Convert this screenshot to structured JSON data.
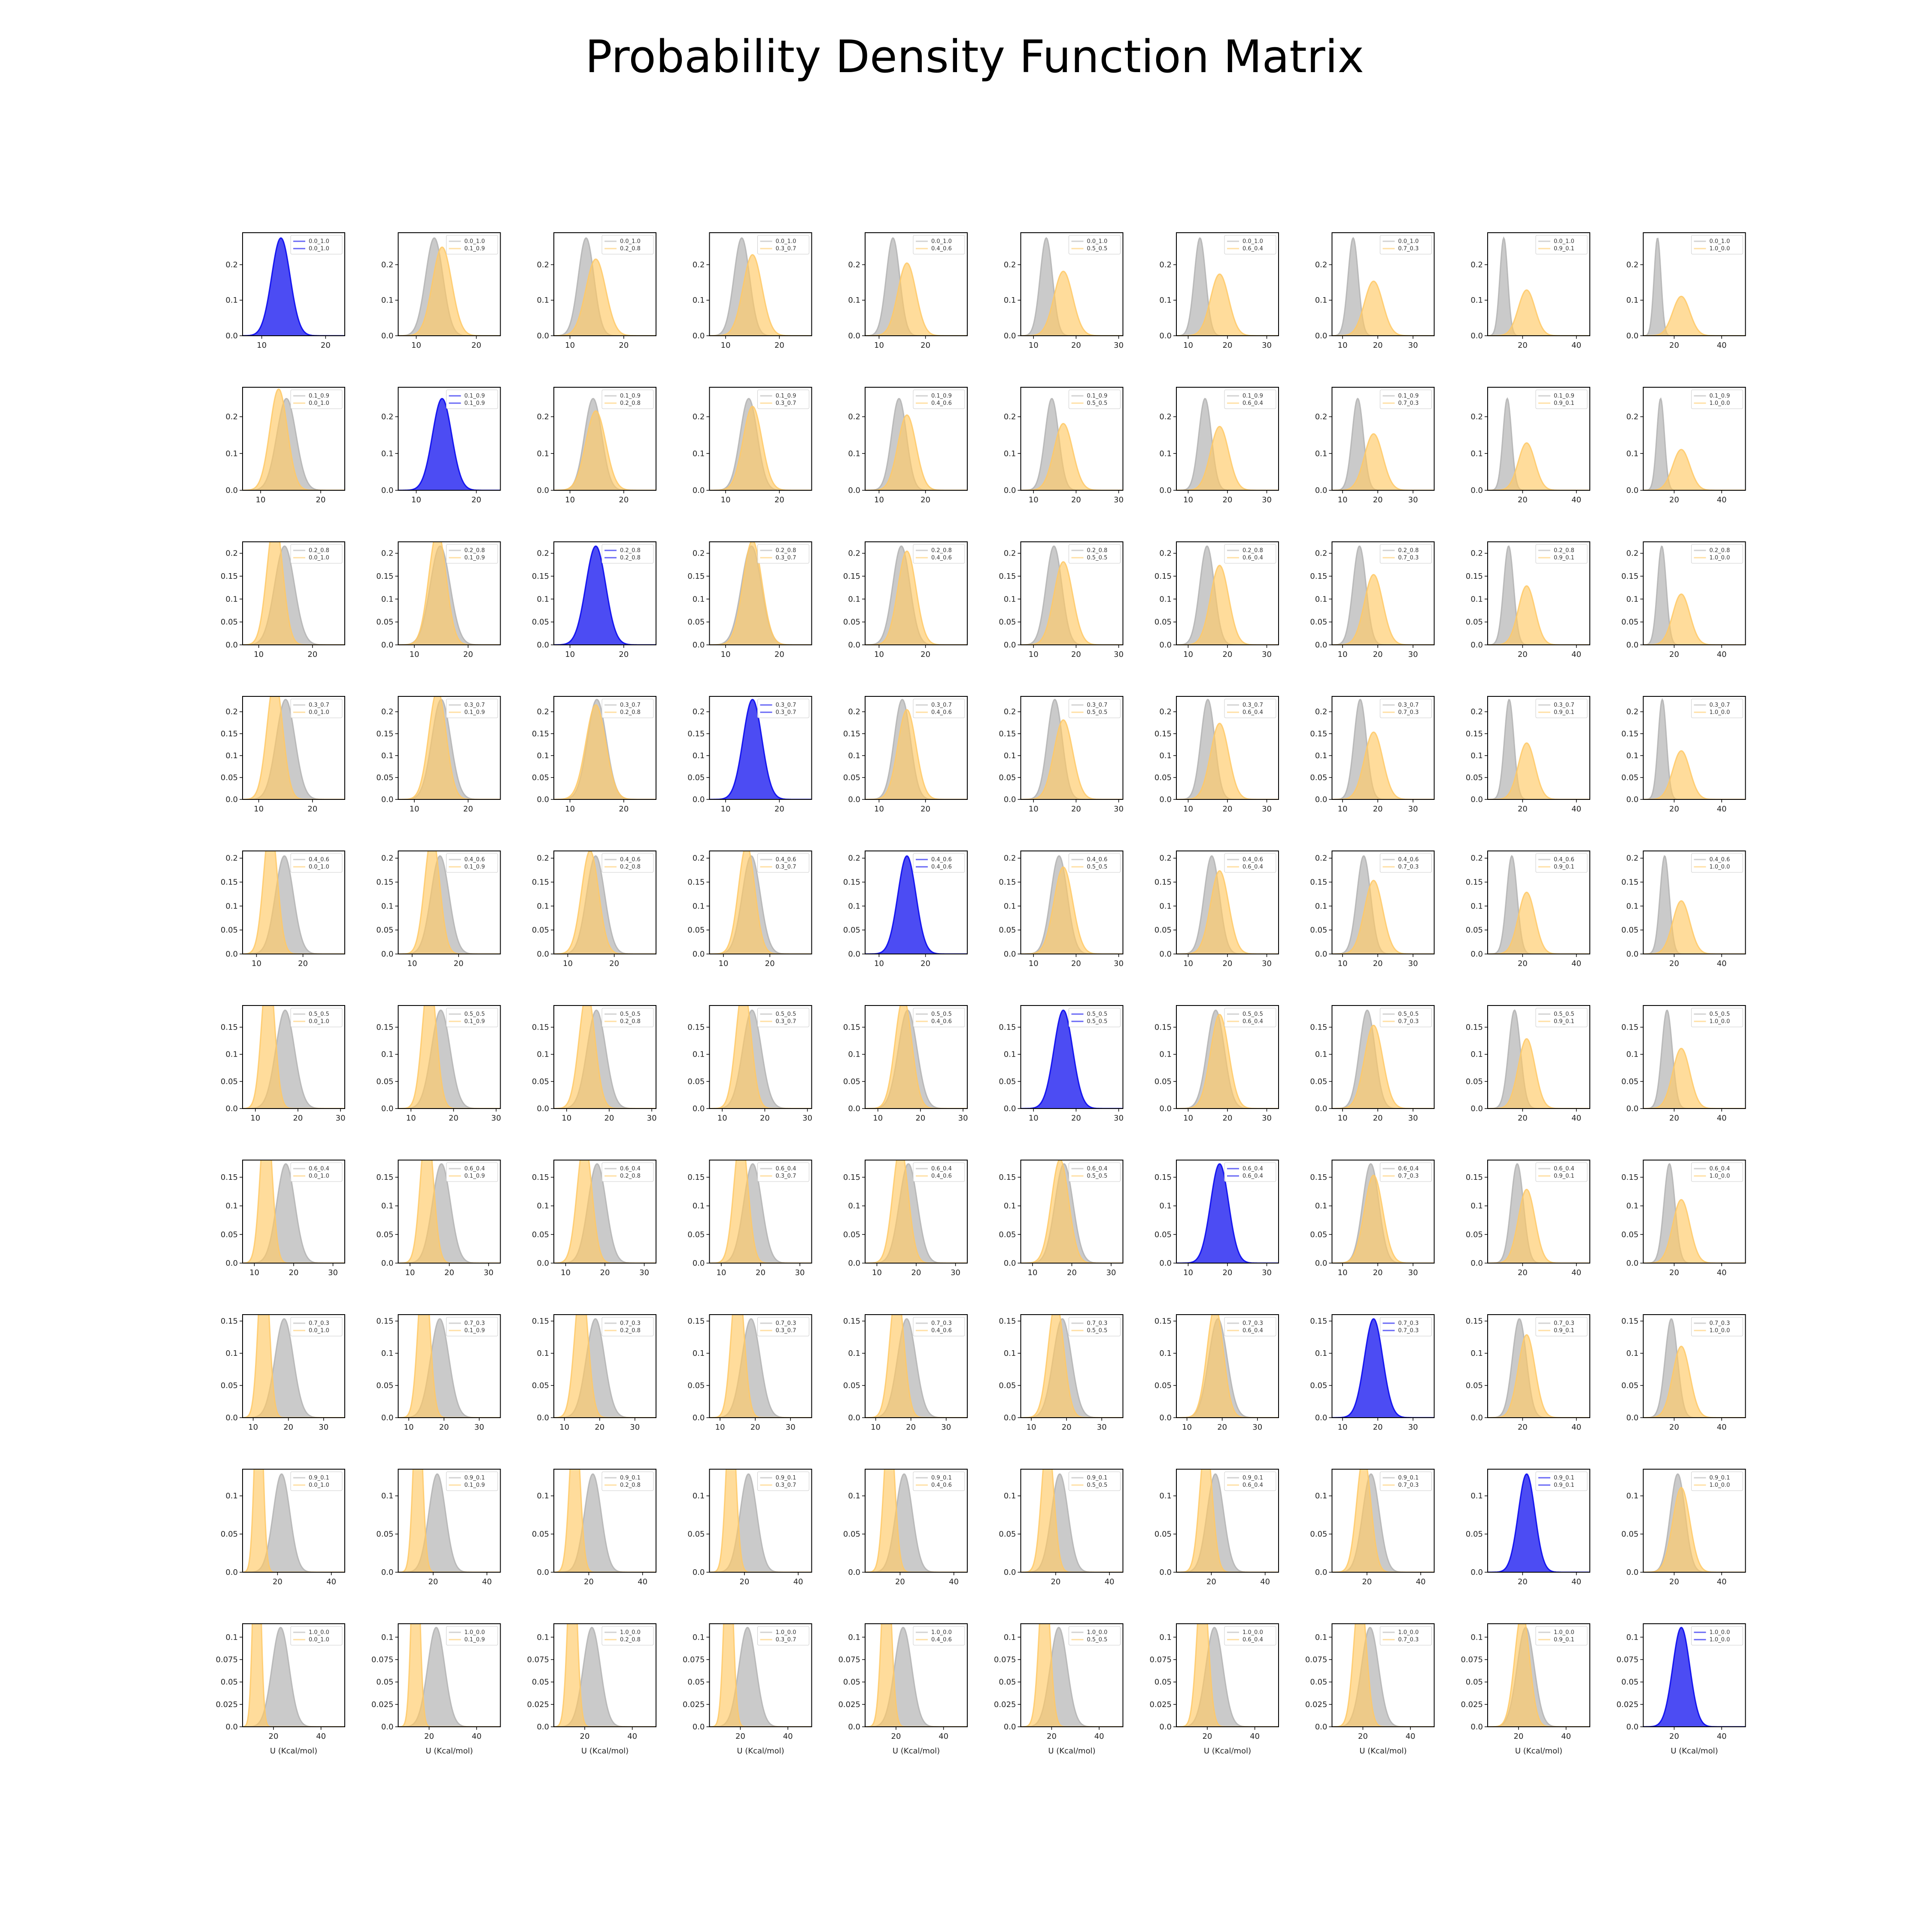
{
  "chart_data": {
    "type": "area",
    "title": "Probability Density Function Matrix",
    "xlabel": "U (Kcal/mol)",
    "ylabel": "",
    "labels": [
      "0.0_1.0",
      "0.1_0.9",
      "0.2_0.8",
      "0.3_0.7",
      "0.4_0.6",
      "0.5_0.5",
      "0.6_0.4",
      "0.7_0.3",
      "0.9_0.1",
      "1.0_0.0"
    ],
    "distributions": [
      {
        "name": "0.0_1.0",
        "mu": 13.0,
        "sigma": 1.45
      },
      {
        "name": "0.1_0.9",
        "mu": 14.3,
        "sigma": 1.6
      },
      {
        "name": "0.2_0.8",
        "mu": 14.8,
        "sigma": 1.85
      },
      {
        "name": "0.3_0.7",
        "mu": 15.0,
        "sigma": 1.75
      },
      {
        "name": "0.4_0.6",
        "mu": 16.0,
        "sigma": 1.95
      },
      {
        "name": "0.5_0.5",
        "mu": 17.0,
        "sigma": 2.2
      },
      {
        "name": "0.6_0.4",
        "mu": 18.0,
        "sigma": 2.3
      },
      {
        "name": "0.7_0.3",
        "mu": 18.8,
        "sigma": 2.6
      },
      {
        "name": "0.9_0.1",
        "mu": 21.5,
        "sigma": 3.1
      },
      {
        "name": "1.0_0.0",
        "mu": 23.0,
        "sigma": 3.6
      }
    ],
    "grid": false,
    "legend_position": "upper right",
    "panels": [
      {
        "row": "0.0_1.0",
        "xlim": [
          [
            7,
            23
          ],
          [
            7,
            24
          ],
          [
            7,
            26
          ],
          [
            7,
            26
          ],
          [
            7,
            29
          ],
          [
            7,
            31
          ],
          [
            7,
            33
          ],
          [
            7,
            36
          ],
          [
            7,
            45
          ],
          [
            7,
            50
          ]
        ],
        "ylim": [
          0,
          0.29
        ],
        "yticks": [
          0,
          0.1,
          0.2
        ]
      },
      {
        "row": "0.1_0.9",
        "xlim": [
          [
            7,
            24
          ],
          [
            7,
            24
          ],
          [
            7,
            26
          ],
          [
            7,
            26
          ],
          [
            7,
            29
          ],
          [
            7,
            31
          ],
          [
            7,
            33
          ],
          [
            7,
            36
          ],
          [
            7,
            45
          ],
          [
            7,
            50
          ]
        ],
        "ylim": [
          0,
          0.28
        ],
        "yticks": [
          0,
          0.1,
          0.2
        ]
      },
      {
        "row": "0.2_0.8",
        "xlim": [
          [
            7,
            26
          ],
          [
            7,
            26
          ],
          [
            7,
            26
          ],
          [
            7,
            26
          ],
          [
            7,
            29
          ],
          [
            7,
            31
          ],
          [
            7,
            33
          ],
          [
            7,
            36
          ],
          [
            7,
            45
          ],
          [
            7,
            50
          ]
        ],
        "ylim": [
          0,
          0.225
        ],
        "yticks": [
          0,
          0.05,
          0.1,
          0.15,
          0.2
        ]
      },
      {
        "row": "0.3_0.7",
        "xlim": [
          [
            7,
            26
          ],
          [
            7,
            26
          ],
          [
            7,
            26
          ],
          [
            7,
            26
          ],
          [
            7,
            29
          ],
          [
            7,
            31
          ],
          [
            7,
            33
          ],
          [
            7,
            36
          ],
          [
            7,
            45
          ],
          [
            7,
            50
          ]
        ],
        "ylim": [
          0,
          0.235
        ],
        "yticks": [
          0,
          0.05,
          0.1,
          0.15,
          0.2
        ]
      },
      {
        "row": "0.4_0.6",
        "xlim": [
          [
            7,
            29
          ],
          [
            7,
            29
          ],
          [
            7,
            29
          ],
          [
            7,
            29
          ],
          [
            7,
            29
          ],
          [
            7,
            31
          ],
          [
            7,
            33
          ],
          [
            7,
            36
          ],
          [
            7,
            45
          ],
          [
            7,
            50
          ]
        ],
        "ylim": [
          0,
          0.215
        ],
        "yticks": [
          0,
          0.05,
          0.1,
          0.15,
          0.2
        ]
      },
      {
        "row": "0.5_0.5",
        "xlim": [
          [
            7,
            31
          ],
          [
            7,
            31
          ],
          [
            7,
            31
          ],
          [
            7,
            31
          ],
          [
            7,
            31
          ],
          [
            7,
            31
          ],
          [
            7,
            33
          ],
          [
            7,
            36
          ],
          [
            7,
            45
          ],
          [
            7,
            50
          ]
        ],
        "ylim": [
          0,
          0.19
        ],
        "yticks": [
          0,
          0.05,
          0.1,
          0.15
        ]
      },
      {
        "row": "0.6_0.4",
        "xlim": [
          [
            7,
            33
          ],
          [
            7,
            33
          ],
          [
            7,
            33
          ],
          [
            7,
            33
          ],
          [
            7,
            33
          ],
          [
            7,
            33
          ],
          [
            7,
            33
          ],
          [
            7,
            36
          ],
          [
            7,
            45
          ],
          [
            7,
            50
          ]
        ],
        "ylim": [
          0,
          0.18
        ],
        "yticks": [
          0,
          0.05,
          0.1,
          0.15
        ]
      },
      {
        "row": "0.7_0.3",
        "xlim": [
          [
            7,
            36
          ],
          [
            7,
            36
          ],
          [
            7,
            36
          ],
          [
            7,
            36
          ],
          [
            7,
            36
          ],
          [
            7,
            36
          ],
          [
            7,
            36
          ],
          [
            7,
            36
          ],
          [
            7,
            45
          ],
          [
            7,
            50
          ]
        ],
        "ylim": [
          0,
          0.16
        ],
        "yticks": [
          0,
          0.05,
          0.1,
          0.15
        ]
      },
      {
        "row": "0.9_0.1",
        "xlim": [
          [
            7,
            45
          ],
          [
            7,
            45
          ],
          [
            7,
            45
          ],
          [
            7,
            45
          ],
          [
            7,
            45
          ],
          [
            7,
            45
          ],
          [
            7,
            45
          ],
          [
            7,
            45
          ],
          [
            7,
            45
          ],
          [
            7,
            50
          ]
        ],
        "ylim": [
          0,
          0.135
        ],
        "yticks": [
          0,
          0.05,
          0.1
        ]
      },
      {
        "row": "1.0_0.0",
        "xlim": [
          [
            7,
            50
          ],
          [
            7,
            50
          ],
          [
            7,
            50
          ],
          [
            7,
            50
          ],
          [
            7,
            50
          ],
          [
            7,
            50
          ],
          [
            7,
            50
          ],
          [
            7,
            50
          ],
          [
            7,
            50
          ],
          [
            7,
            50
          ]
        ],
        "ylim": [
          0,
          0.115
        ],
        "yticks": [
          0,
          0.025,
          0.05,
          0.075,
          0.1
        ]
      }
    ],
    "xticks_by_range": {
      "23": [
        10,
        20
      ],
      "24": [
        10,
        20
      ],
      "26": [
        10,
        20
      ],
      "29": [
        10,
        20
      ],
      "31": [
        10,
        20,
        30
      ],
      "33": [
        10,
        20,
        30
      ],
      "36": [
        10,
        20,
        30
      ],
      "45": [
        20,
        40
      ],
      "50": [
        20,
        40
      ]
    },
    "colors": {
      "row_distribution": "#b3b3b3",
      "column_distribution": "#ffc966",
      "diagonal": "#0000ee",
      "overlap": "#d4b07a"
    }
  }
}
